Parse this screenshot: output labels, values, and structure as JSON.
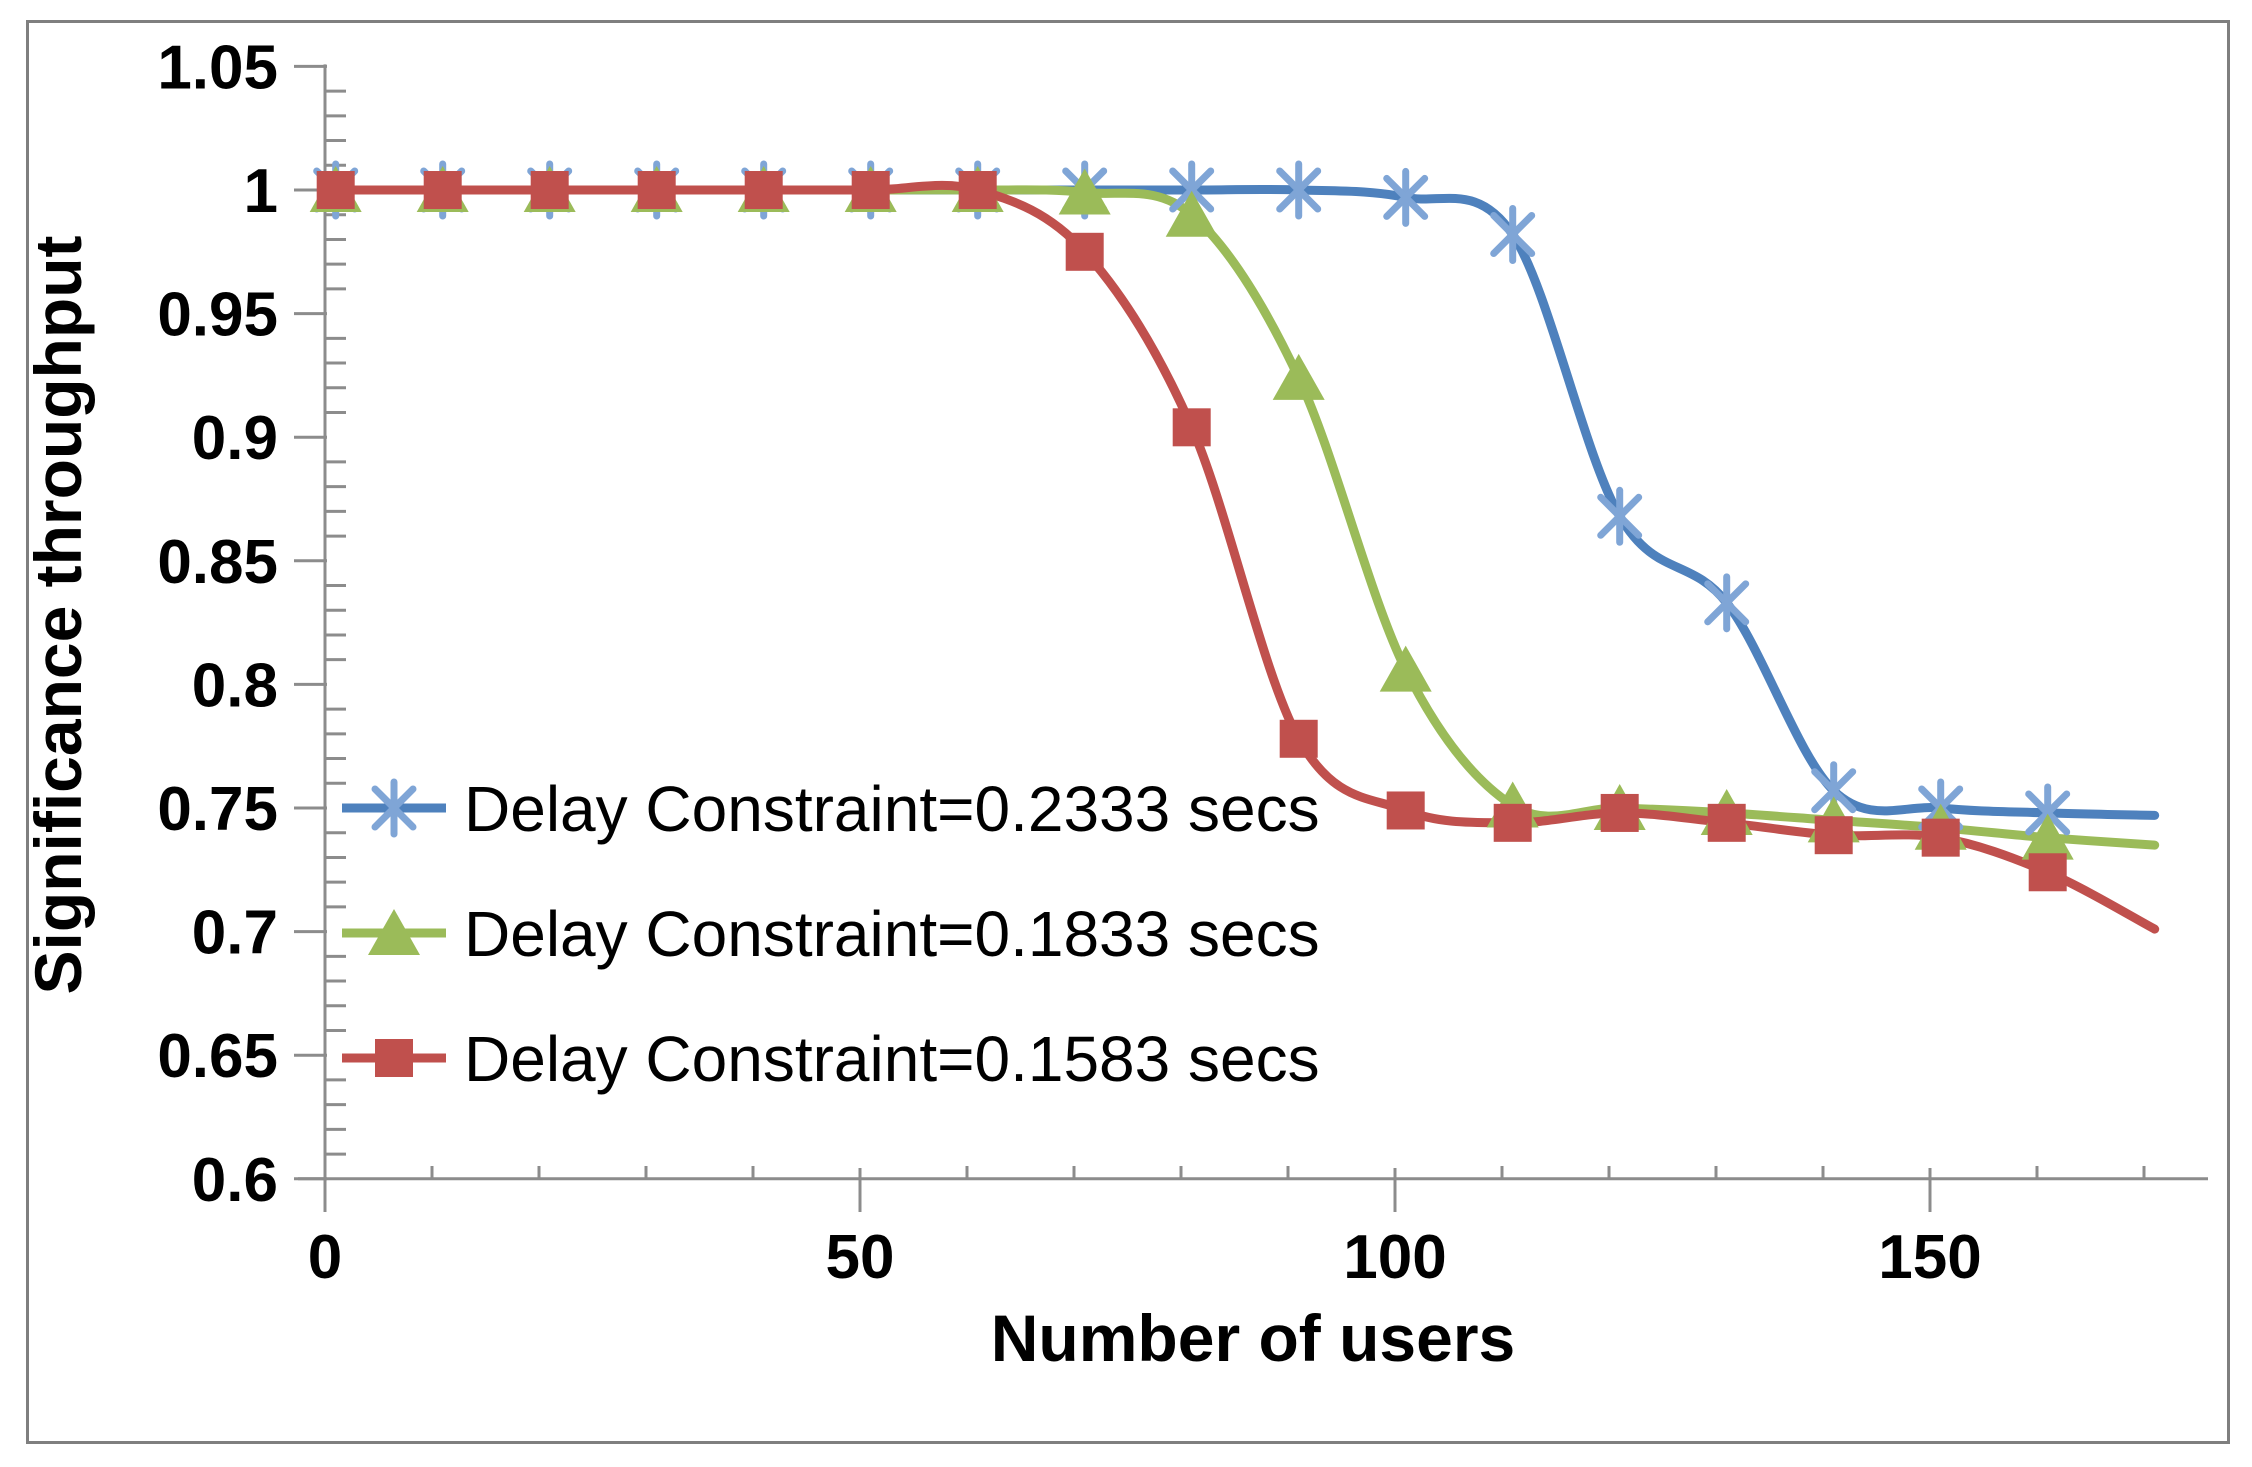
{
  "colors": {
    "axis": "#8C8C8C",
    "frame": "#7F7F7F",
    "text": "#000000",
    "series_blue": "#4E81BD",
    "series_blue_marker": "#7FA5D6",
    "series_green": "#9BBB59",
    "series_red": "#C0504D"
  },
  "chart_data": {
    "type": "line",
    "title": "",
    "xlabel": "Number of users",
    "ylabel": "Significance throughput",
    "xlim": [
      0,
      176
    ],
    "ylim": [
      0.6,
      1.05
    ],
    "x_major_ticks": [
      0,
      50,
      100,
      150
    ],
    "x_minor_step": 10,
    "y_major_ticks": [
      1.05,
      1,
      0.95,
      0.9,
      0.85,
      0.8,
      0.75,
      0.7,
      0.65,
      0.6
    ],
    "y_minor_step": 0.01,
    "grid": false,
    "legend_position": "inside bottom-left",
    "smoothed_lines": true,
    "x": [
      1,
      11,
      21,
      31,
      41,
      51,
      61,
      71,
      81,
      91,
      101,
      111,
      121,
      131,
      141,
      151,
      161,
      171
    ],
    "series": [
      {
        "name": "Delay Constraint=0.2333 secs",
        "color": "#4E81BD",
        "marker": "asterisk",
        "marker_color": "#7FA5D6",
        "values": [
          1.0,
          1.0,
          1.0,
          1.0,
          1.0,
          1.0,
          1.0,
          1.0,
          1.0,
          1.0,
          0.997,
          0.982,
          0.868,
          0.833,
          0.757,
          0.75,
          0.748,
          0.747
        ]
      },
      {
        "name": "Delay Constraint=0.1833 secs",
        "color": "#9BBB59",
        "marker": "triangle-up",
        "marker_color": "#9BBB59",
        "values": [
          1.0,
          1.0,
          1.0,
          1.0,
          1.0,
          1.0,
          1.0,
          0.999,
          0.99,
          0.924,
          0.806,
          0.751,
          0.75,
          0.748,
          0.745,
          0.742,
          0.738,
          0.735
        ]
      },
      {
        "name": "Delay Constraint=0.1583 secs",
        "color": "#C0504D",
        "marker": "square",
        "marker_color": "#C0504D",
        "values": [
          1.0,
          1.0,
          1.0,
          1.0,
          1.0,
          1.0,
          1.0,
          0.975,
          0.904,
          0.778,
          0.749,
          0.744,
          0.748,
          0.744,
          0.739,
          0.738,
          0.724,
          0.701
        ]
      }
    ]
  }
}
